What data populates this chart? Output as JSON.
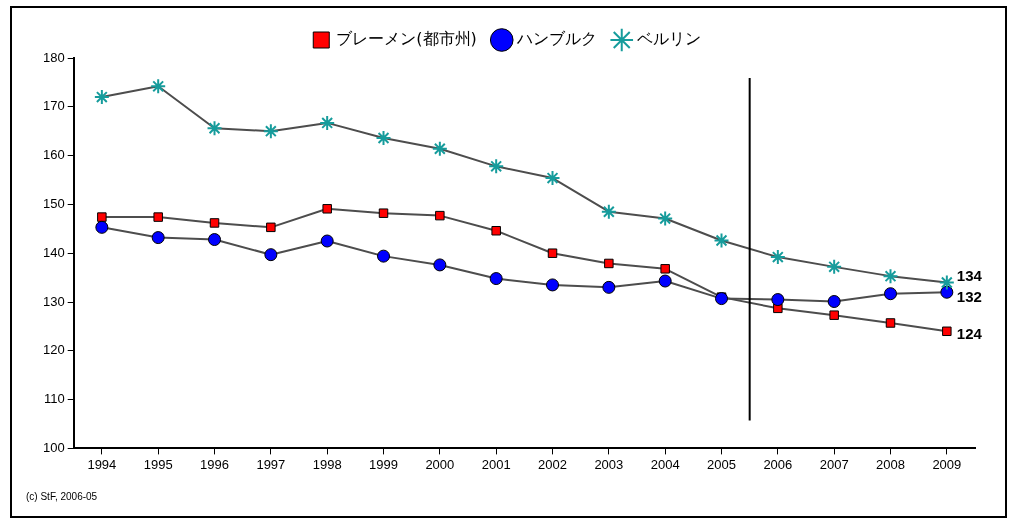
{
  "chart_data": {
    "type": "line",
    "x": [
      1994,
      1995,
      1996,
      1997,
      1998,
      1999,
      2000,
      2001,
      2002,
      2003,
      2004,
      2005,
      2006,
      2007,
      2008,
      2009
    ],
    "xlim": [
      1993.5,
      2009.5
    ],
    "xticks": [
      1994,
      1995,
      1996,
      1997,
      1998,
      1999,
      2000,
      2001,
      2002,
      2003,
      2004,
      2005,
      2006,
      2007,
      2008,
      2009
    ],
    "ylim": [
      100,
      180
    ],
    "yticks": [
      100,
      110,
      120,
      130,
      140,
      150,
      160,
      170,
      180
    ],
    "grid": false,
    "legend": "top",
    "series": [
      {
        "name": "ブレーメン(都市州)",
        "color": "#ff0000",
        "marker": "square",
        "values": [
          147.4,
          147.4,
          146.2,
          145.3,
          149.1,
          148.2,
          147.7,
          144.6,
          140,
          137.9,
          136.8,
          131,
          128.7,
          127.3,
          125.7,
          124
        ],
        "value_labels": [
          null,
          null,
          null,
          null,
          null,
          null,
          null,
          null,
          null,
          null,
          null,
          null,
          null,
          null,
          null,
          "124"
        ]
      },
      {
        "name": "ハンブルク",
        "color": "#0000ff",
        "marker": "circle",
        "values": [
          145.3,
          143.2,
          142.8,
          139.7,
          142.5,
          139.4,
          137.6,
          134.8,
          133.5,
          133,
          134.3,
          130.7,
          130.5,
          130.1,
          131.7,
          132
        ],
        "value_labels": [
          null,
          null,
          null,
          null,
          null,
          null,
          null,
          null,
          null,
          null,
          null,
          null,
          null,
          null,
          null,
          "132"
        ]
      },
      {
        "name": "ベルリン",
        "color": "#169c9c",
        "marker": "cross",
        "values": [
          172,
          174.2,
          165.6,
          165,
          166.7,
          163.6,
          161.4,
          157.8,
          155.4,
          148.5,
          147.1,
          142.6,
          139.2,
          137.2,
          135.3,
          134
        ],
        "value_labels": [
          null,
          null,
          null,
          null,
          null,
          null,
          null,
          null,
          null,
          null,
          null,
          null,
          null,
          null,
          null,
          "134"
        ]
      }
    ],
    "ref_lines": [
      {
        "axis": "x",
        "value": 2005.5,
        "color": "#000000"
      }
    ],
    "annotations": [
      "(c) StF, 2006-05"
    ]
  }
}
